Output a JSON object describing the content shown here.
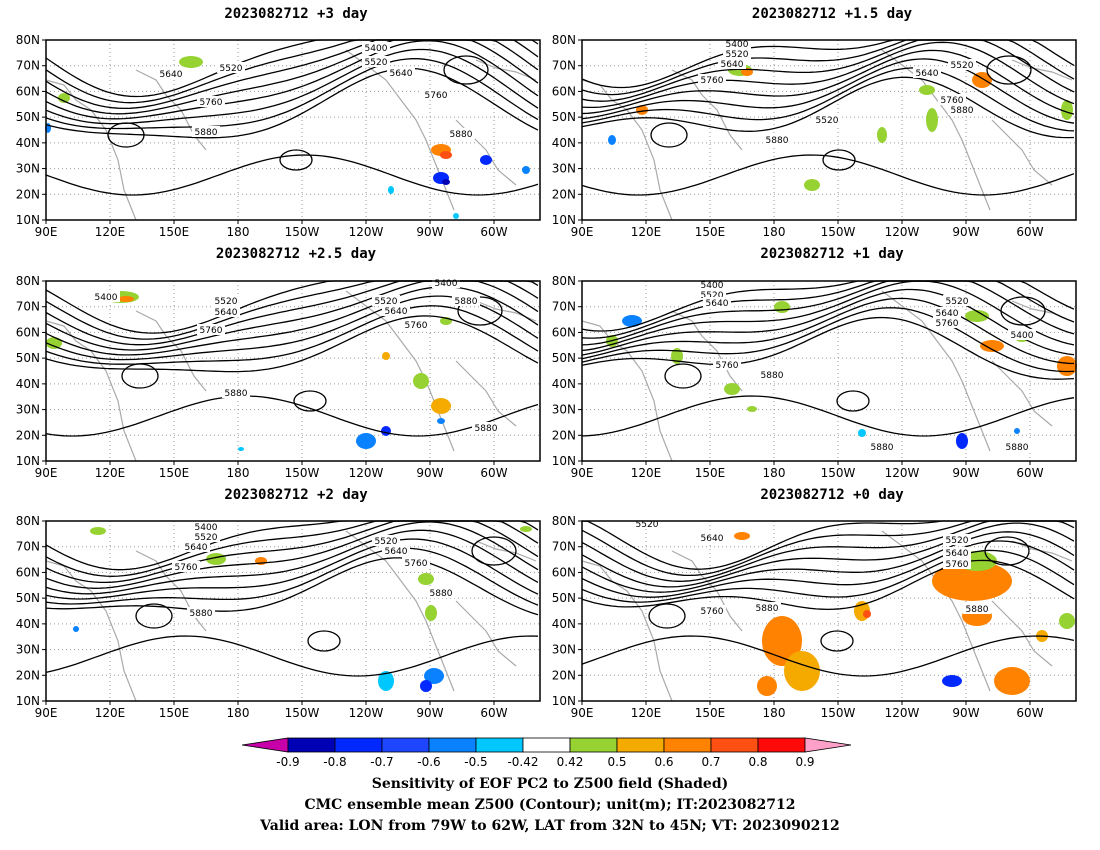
{
  "panels": [
    {
      "title": "2023082712 +3 day",
      "contour_labels": [
        "5400",
        "5520",
        "5640",
        "5760",
        "5880",
        "5520",
        "5640",
        "5760",
        "5880"
      ]
    },
    {
      "title": "2023082712 +1.5 day",
      "contour_labels": [
        "5400",
        "5520",
        "5640",
        "5760",
        "5640",
        "5520",
        "5760",
        "5880",
        "5520",
        "5880"
      ]
    },
    {
      "title": "2023082712 +2.5 day",
      "contour_labels": [
        "5400",
        "5520",
        "5640",
        "5760",
        "5880",
        "5400",
        "5520",
        "5640",
        "5760",
        "5880",
        "5880"
      ]
    },
    {
      "title": "2023082712 +1 day",
      "contour_labels": [
        "5400",
        "5520",
        "5640",
        "5520",
        "5640",
        "5760",
        "5760",
        "5880",
        "5400",
        "5880",
        "5880"
      ]
    },
    {
      "title": "2023082712 +2 day",
      "contour_labels": [
        "5400",
        "5520",
        "5640",
        "5760",
        "5880",
        "5520",
        "5640",
        "5760",
        "5880"
      ]
    },
    {
      "title": "2023082712 +0 day",
      "contour_labels": [
        "5520",
        "5640",
        "5520",
        "5640",
        "5760",
        "5760",
        "5880",
        "5880"
      ]
    }
  ],
  "map": {
    "lat_labels": [
      "10N",
      "20N",
      "30N",
      "40N",
      "50N",
      "60N",
      "70N",
      "80N"
    ],
    "lon_labels": [
      "90E",
      "120E",
      "150E",
      "180",
      "150W",
      "120W",
      "90W",
      "60W"
    ]
  },
  "colorbar": {
    "ticks": [
      "-0.9",
      "-0.8",
      "-0.7",
      "-0.6",
      "-0.5",
      "-0.42",
      "0.42",
      "0.5",
      "0.6",
      "0.7",
      "0.8",
      "0.9"
    ],
    "colors": [
      "#0000b4",
      "#0028ff",
      "#1e46ff",
      "#0a82ff",
      "#00c8ff",
      "#ffffff",
      "#96d232",
      "#f5aa00",
      "#ff8200",
      "#ff5014",
      "#ff0a0a"
    ],
    "low_color": "#c800aa",
    "high_color": "#ffa0c8"
  },
  "caption": {
    "line1": "Sensitivity of EOF PC2 to Z500 field (Shaded)",
    "line2": "CMC ensemble mean Z500 (Contour); unit(m); IT:2023082712",
    "line3": "Valid area: LON from 79W to 62W, LAT from 32N to 45N; VT: 2023090212"
  }
}
